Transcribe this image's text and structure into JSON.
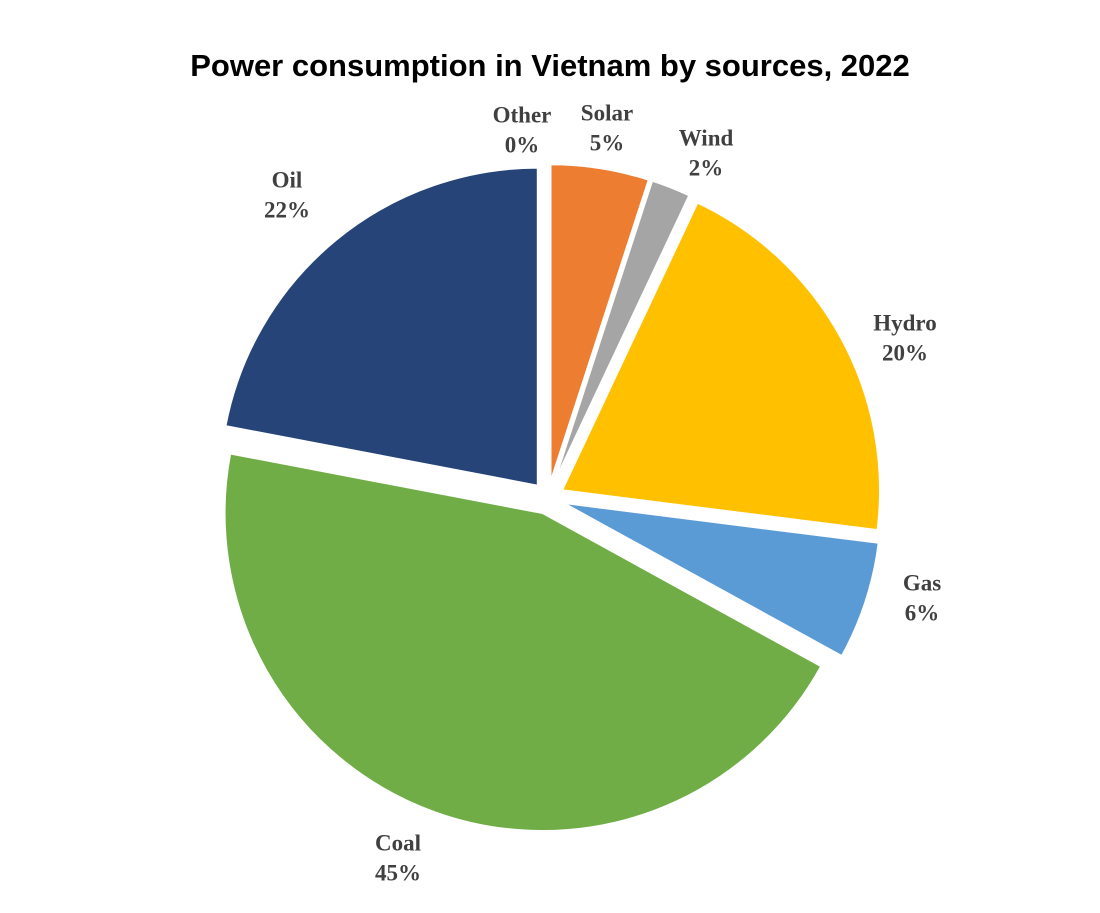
{
  "chart_data": {
    "type": "pie",
    "title": "Power consumption in Vietnam by sources, 2022",
    "categories": [
      "Other",
      "Solar",
      "Wind",
      "Hydro",
      "Gas",
      "Coal",
      "Oil"
    ],
    "values": [
      0,
      5,
      2,
      20,
      6,
      45,
      22
    ],
    "value_labels": [
      "0%",
      "5%",
      "2%",
      "20%",
      "6%",
      "45%",
      "22%"
    ],
    "colors": [
      "#9e480e",
      "#ed7d31",
      "#a5a5a5",
      "#ffc000",
      "#5b9bd5",
      "#70ad47",
      "#264478"
    ]
  }
}
